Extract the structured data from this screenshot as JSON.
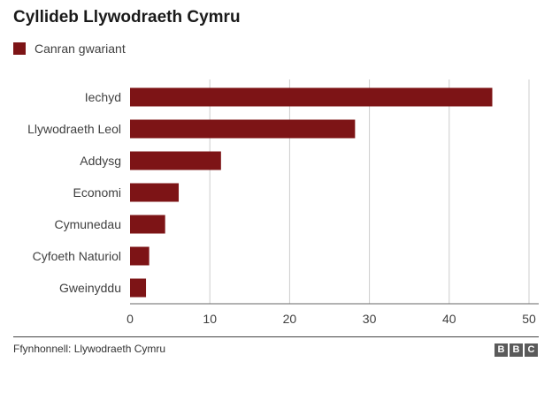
{
  "chart_data": {
    "type": "bar",
    "orientation": "horizontal",
    "title": "Cyllideb Llywodraeth Cymru",
    "categories": [
      "Iechyd",
      "Llywodraeth Leol",
      "Addysg",
      "Economi",
      "Cymunedau",
      "Cyfoeth Naturiol",
      "Gweinyddu"
    ],
    "series": [
      {
        "name": "Canran gwariant",
        "values": [
          45.4,
          28.2,
          11.4,
          6.1,
          4.4,
          2.4,
          2.0
        ]
      }
    ],
    "xlim": [
      0,
      50
    ],
    "xticks": [
      0,
      10,
      20,
      30,
      40,
      50
    ],
    "grid": true,
    "legend": "top-left",
    "bar_color": "#7d1416",
    "grid_color": "#cccccc",
    "axis_color": "#666666"
  },
  "footer": {
    "source": "Ffynhonnell: Llywodraeth Cymru",
    "logo_letters": [
      "B",
      "B",
      "C"
    ]
  }
}
